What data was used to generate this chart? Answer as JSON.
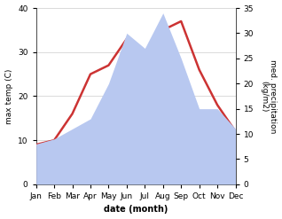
{
  "months": [
    "Jan",
    "Feb",
    "Mar",
    "Apr",
    "May",
    "Jun",
    "Jul",
    "Aug",
    "Sep",
    "Oct",
    "Nov",
    "Dec"
  ],
  "temp": [
    9,
    10,
    16,
    25,
    27,
    33,
    30,
    35,
    37,
    26,
    18,
    12
  ],
  "precip": [
    8,
    9,
    11,
    13,
    20,
    30,
    27,
    34,
    25,
    15,
    15,
    11
  ],
  "temp_color": "#cc3333",
  "precip_fill_color": "#b8c8f0",
  "title": "",
  "xlabel": "date (month)",
  "ylabel_left": "max temp (C)",
  "ylabel_right": "med. precipitation\n(kg/m2)",
  "ylim_left": [
    0,
    40
  ],
  "ylim_right": [
    0,
    35
  ],
  "yticks_left": [
    0,
    10,
    20,
    30,
    40
  ],
  "yticks_right": [
    0,
    5,
    10,
    15,
    20,
    25,
    30,
    35
  ],
  "line_width": 1.8,
  "bg_color": "#ffffff"
}
